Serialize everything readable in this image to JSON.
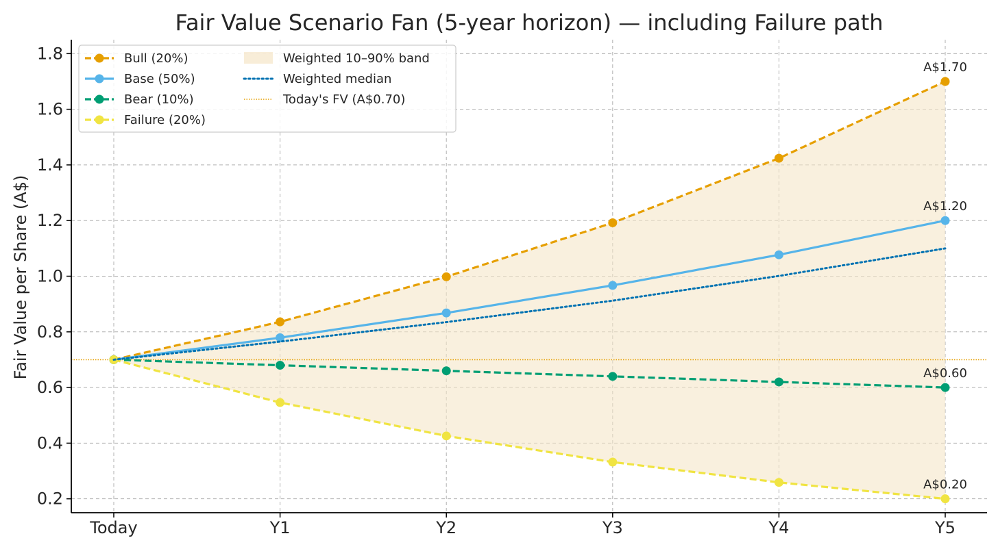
{
  "chart_data": {
    "type": "line",
    "title": "Fair Value Scenario Fan (5-year horizon) — including Failure path",
    "xlabel": "",
    "ylabel": "Fair Value per Share (A$)",
    "categories": [
      "Today",
      "Y1",
      "Y2",
      "Y3",
      "Y4",
      "Y5"
    ],
    "ylim": [
      0.15,
      1.85
    ],
    "yticks": [
      0.2,
      0.4,
      0.6,
      0.8,
      1.0,
      1.2,
      1.4,
      1.6,
      1.8
    ],
    "ytick_labels": [
      "0.2",
      "0.4",
      "0.6",
      "0.8",
      "1.0",
      "1.2",
      "1.4",
      "1.6",
      "1.8"
    ],
    "grid": true,
    "legend_position": "top-left",
    "series": [
      {
        "name": "Bull (20%)",
        "style": "dashed",
        "color": "#E69F00",
        "values": [
          0.7,
          0.836,
          0.998,
          1.192,
          1.424,
          1.7
        ],
        "end_label": "A$1.70"
      },
      {
        "name": "Base (50%)",
        "style": "solid",
        "color": "#56B4E9",
        "values": [
          0.7,
          0.779,
          0.868,
          0.967,
          1.077,
          1.2
        ],
        "end_label": "A$1.20"
      },
      {
        "name": "Bear (10%)",
        "style": "dashed",
        "color": "#009E73",
        "values": [
          0.7,
          0.68,
          0.66,
          0.64,
          0.62,
          0.6
        ],
        "end_label": "A$0.60"
      },
      {
        "name": "Failure (20%)",
        "style": "dashed",
        "color": "#F0E442",
        "values": [
          0.7,
          0.546,
          0.426,
          0.332,
          0.259,
          0.2
        ],
        "end_label": "A$0.20"
      }
    ],
    "band": {
      "name": "Weighted 10–90% band",
      "color": "#F5E6C8",
      "lower": [
        0.7,
        0.546,
        0.426,
        0.332,
        0.259,
        0.2
      ],
      "upper": [
        0.7,
        0.836,
        0.998,
        1.192,
        1.424,
        1.7
      ]
    },
    "median": {
      "name": "Weighted median",
      "color": "#0072B2",
      "values": [
        0.7,
        0.765,
        0.835,
        0.912,
        1.001,
        1.1
      ]
    },
    "reference": {
      "name": "Today's FV (A$0.70)",
      "color": "#E69F00",
      "value": 0.7
    }
  }
}
